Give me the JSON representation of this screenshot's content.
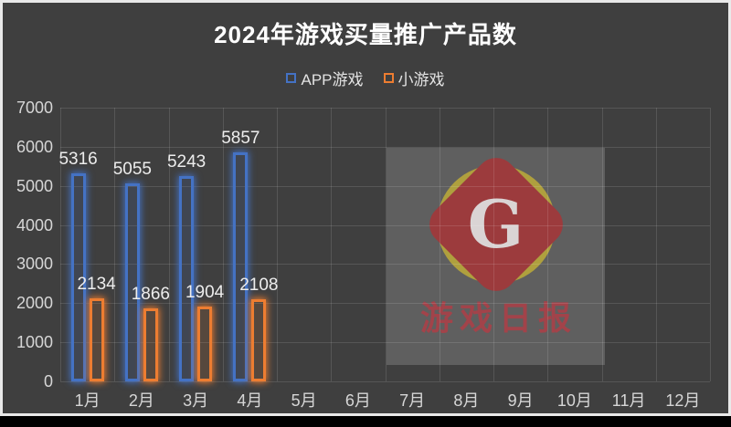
{
  "title": "2024年游戏买量推广产品数",
  "legend": [
    {
      "label": "APP游戏",
      "color": "#4472C4"
    },
    {
      "label": "小游戏",
      "color": "#ED7D31"
    }
  ],
  "watermark": {
    "logo_letter": "G",
    "text": "游戏日报",
    "badge_red": "#9C3B3D",
    "badge_yellow": "#AFA03E"
  },
  "colors": {
    "background": "#3F3F3F",
    "frame": "#E9E9E9",
    "grid": "rgba(255,255,255,0.12)",
    "axis_text": "#D6D6D6",
    "value_text": "#EDEDED",
    "series_app": "#4472C4",
    "series_mini": "#ED7D31"
  },
  "chart_data": {
    "type": "bar",
    "title": "2024年游戏买量推广产品数",
    "categories": [
      "1月",
      "2月",
      "3月",
      "4月",
      "5月",
      "6月",
      "7月",
      "8月",
      "9月",
      "10月",
      "11月",
      "12月"
    ],
    "series": [
      {
        "name": "APP游戏",
        "color": "#4472C4",
        "values": [
          5316,
          5055,
          5243,
          5857,
          null,
          null,
          null,
          null,
          null,
          null,
          null,
          null
        ]
      },
      {
        "name": "小游戏",
        "color": "#ED7D31",
        "values": [
          2134,
          1866,
          1904,
          2108,
          null,
          null,
          null,
          null,
          null,
          null,
          null,
          null
        ]
      }
    ],
    "xlabel": "",
    "ylabel": "",
    "ylim": [
      0,
      7000
    ],
    "ytick_step": 1000,
    "grid": true,
    "legend_position": "top",
    "bar_style": "hollow-outline-glow"
  }
}
